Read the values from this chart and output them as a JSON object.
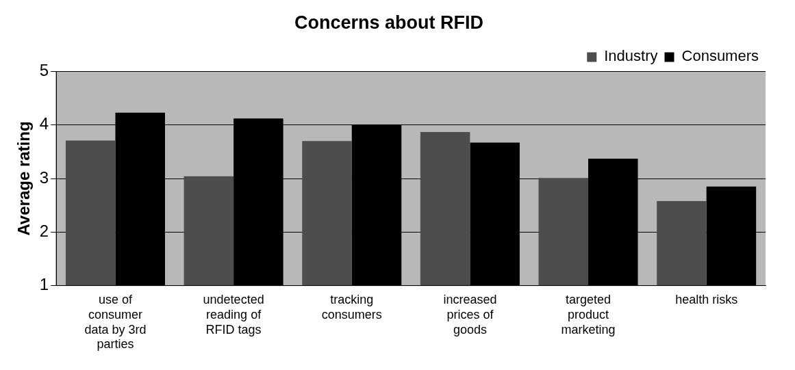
{
  "chart_data": {
    "type": "bar",
    "title": "Concerns about RFID",
    "ylabel": "Average rating",
    "categories": [
      "use of consumer data by 3rd parties",
      "undetected reading of RFID tags",
      "tracking consumers",
      "increased prices of goods",
      "targeted product marketing",
      "health risks"
    ],
    "series": [
      {
        "name": "Industry",
        "color": "#4d4d4d",
        "values": [
          3.71,
          3.04,
          3.7,
          3.87,
          3.01,
          2.58
        ]
      },
      {
        "name": "Consumers",
        "color": "#000000",
        "values": [
          4.23,
          4.12,
          4.0,
          3.67,
          3.37,
          2.85
        ]
      }
    ],
    "ylim": [
      1,
      5
    ],
    "yticks": [
      1,
      2,
      3,
      4,
      5
    ],
    "grid": "y",
    "legend": "top right"
  }
}
